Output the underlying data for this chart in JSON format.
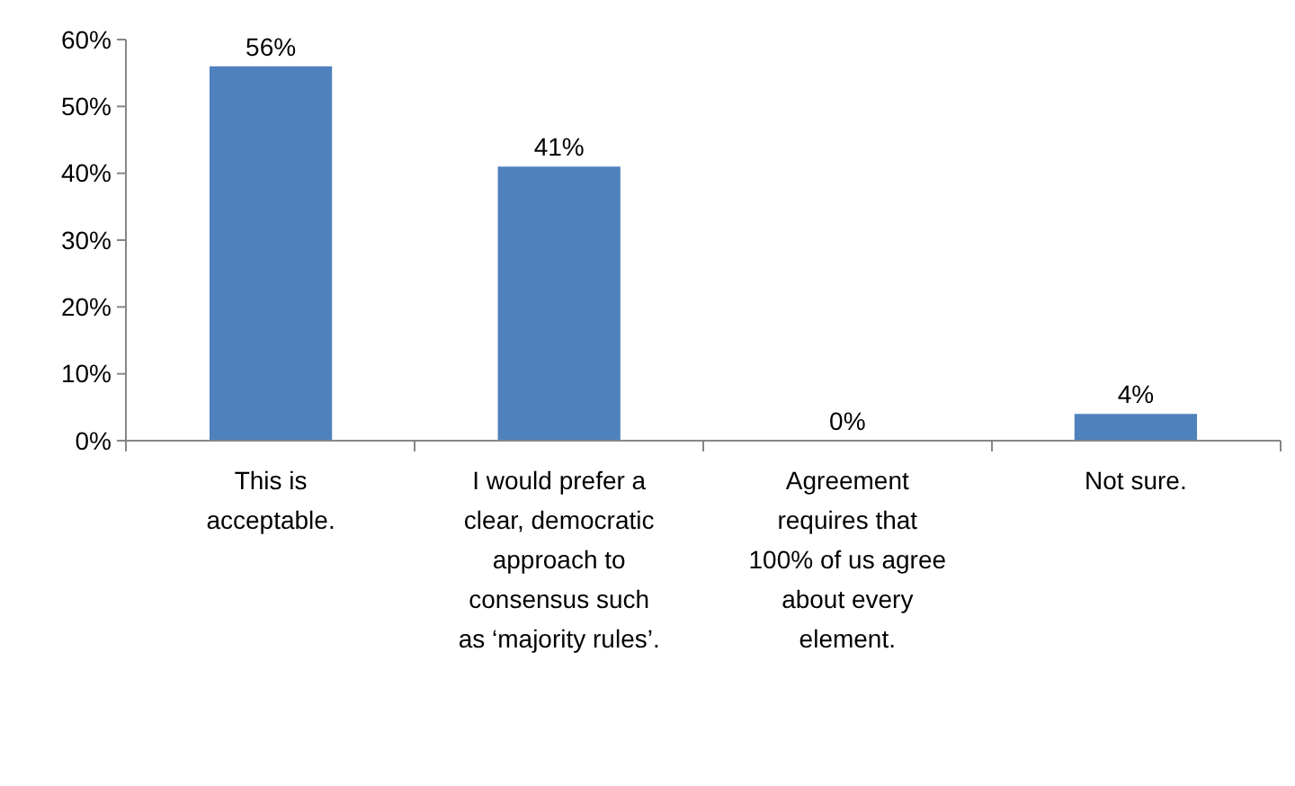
{
  "chart_data": {
    "type": "bar",
    "categories": [
      "This is acceptable.",
      "I would prefer a clear, democratic approach to consensus such as ‘majority rules’.",
      "Agreement requires that 100% of us agree about every element.",
      "Not sure."
    ],
    "values": [
      56,
      41,
      0,
      4
    ],
    "color": "#4f81bd",
    "data_labels": true,
    "value_labels": [
      "56%",
      "41%",
      "0%",
      "4%"
    ],
    "ylim": [
      0,
      60
    ],
    "yticks": [
      {
        "value": 0,
        "label": "0%"
      },
      {
        "value": 10,
        "label": "10%"
      },
      {
        "value": 20,
        "label": "20%"
      },
      {
        "value": 30,
        "label": "30%"
      },
      {
        "value": 40,
        "label": "40%"
      },
      {
        "value": 50,
        "label": "50%"
      },
      {
        "value": 60,
        "label": "60%"
      }
    ],
    "grid": false
  }
}
